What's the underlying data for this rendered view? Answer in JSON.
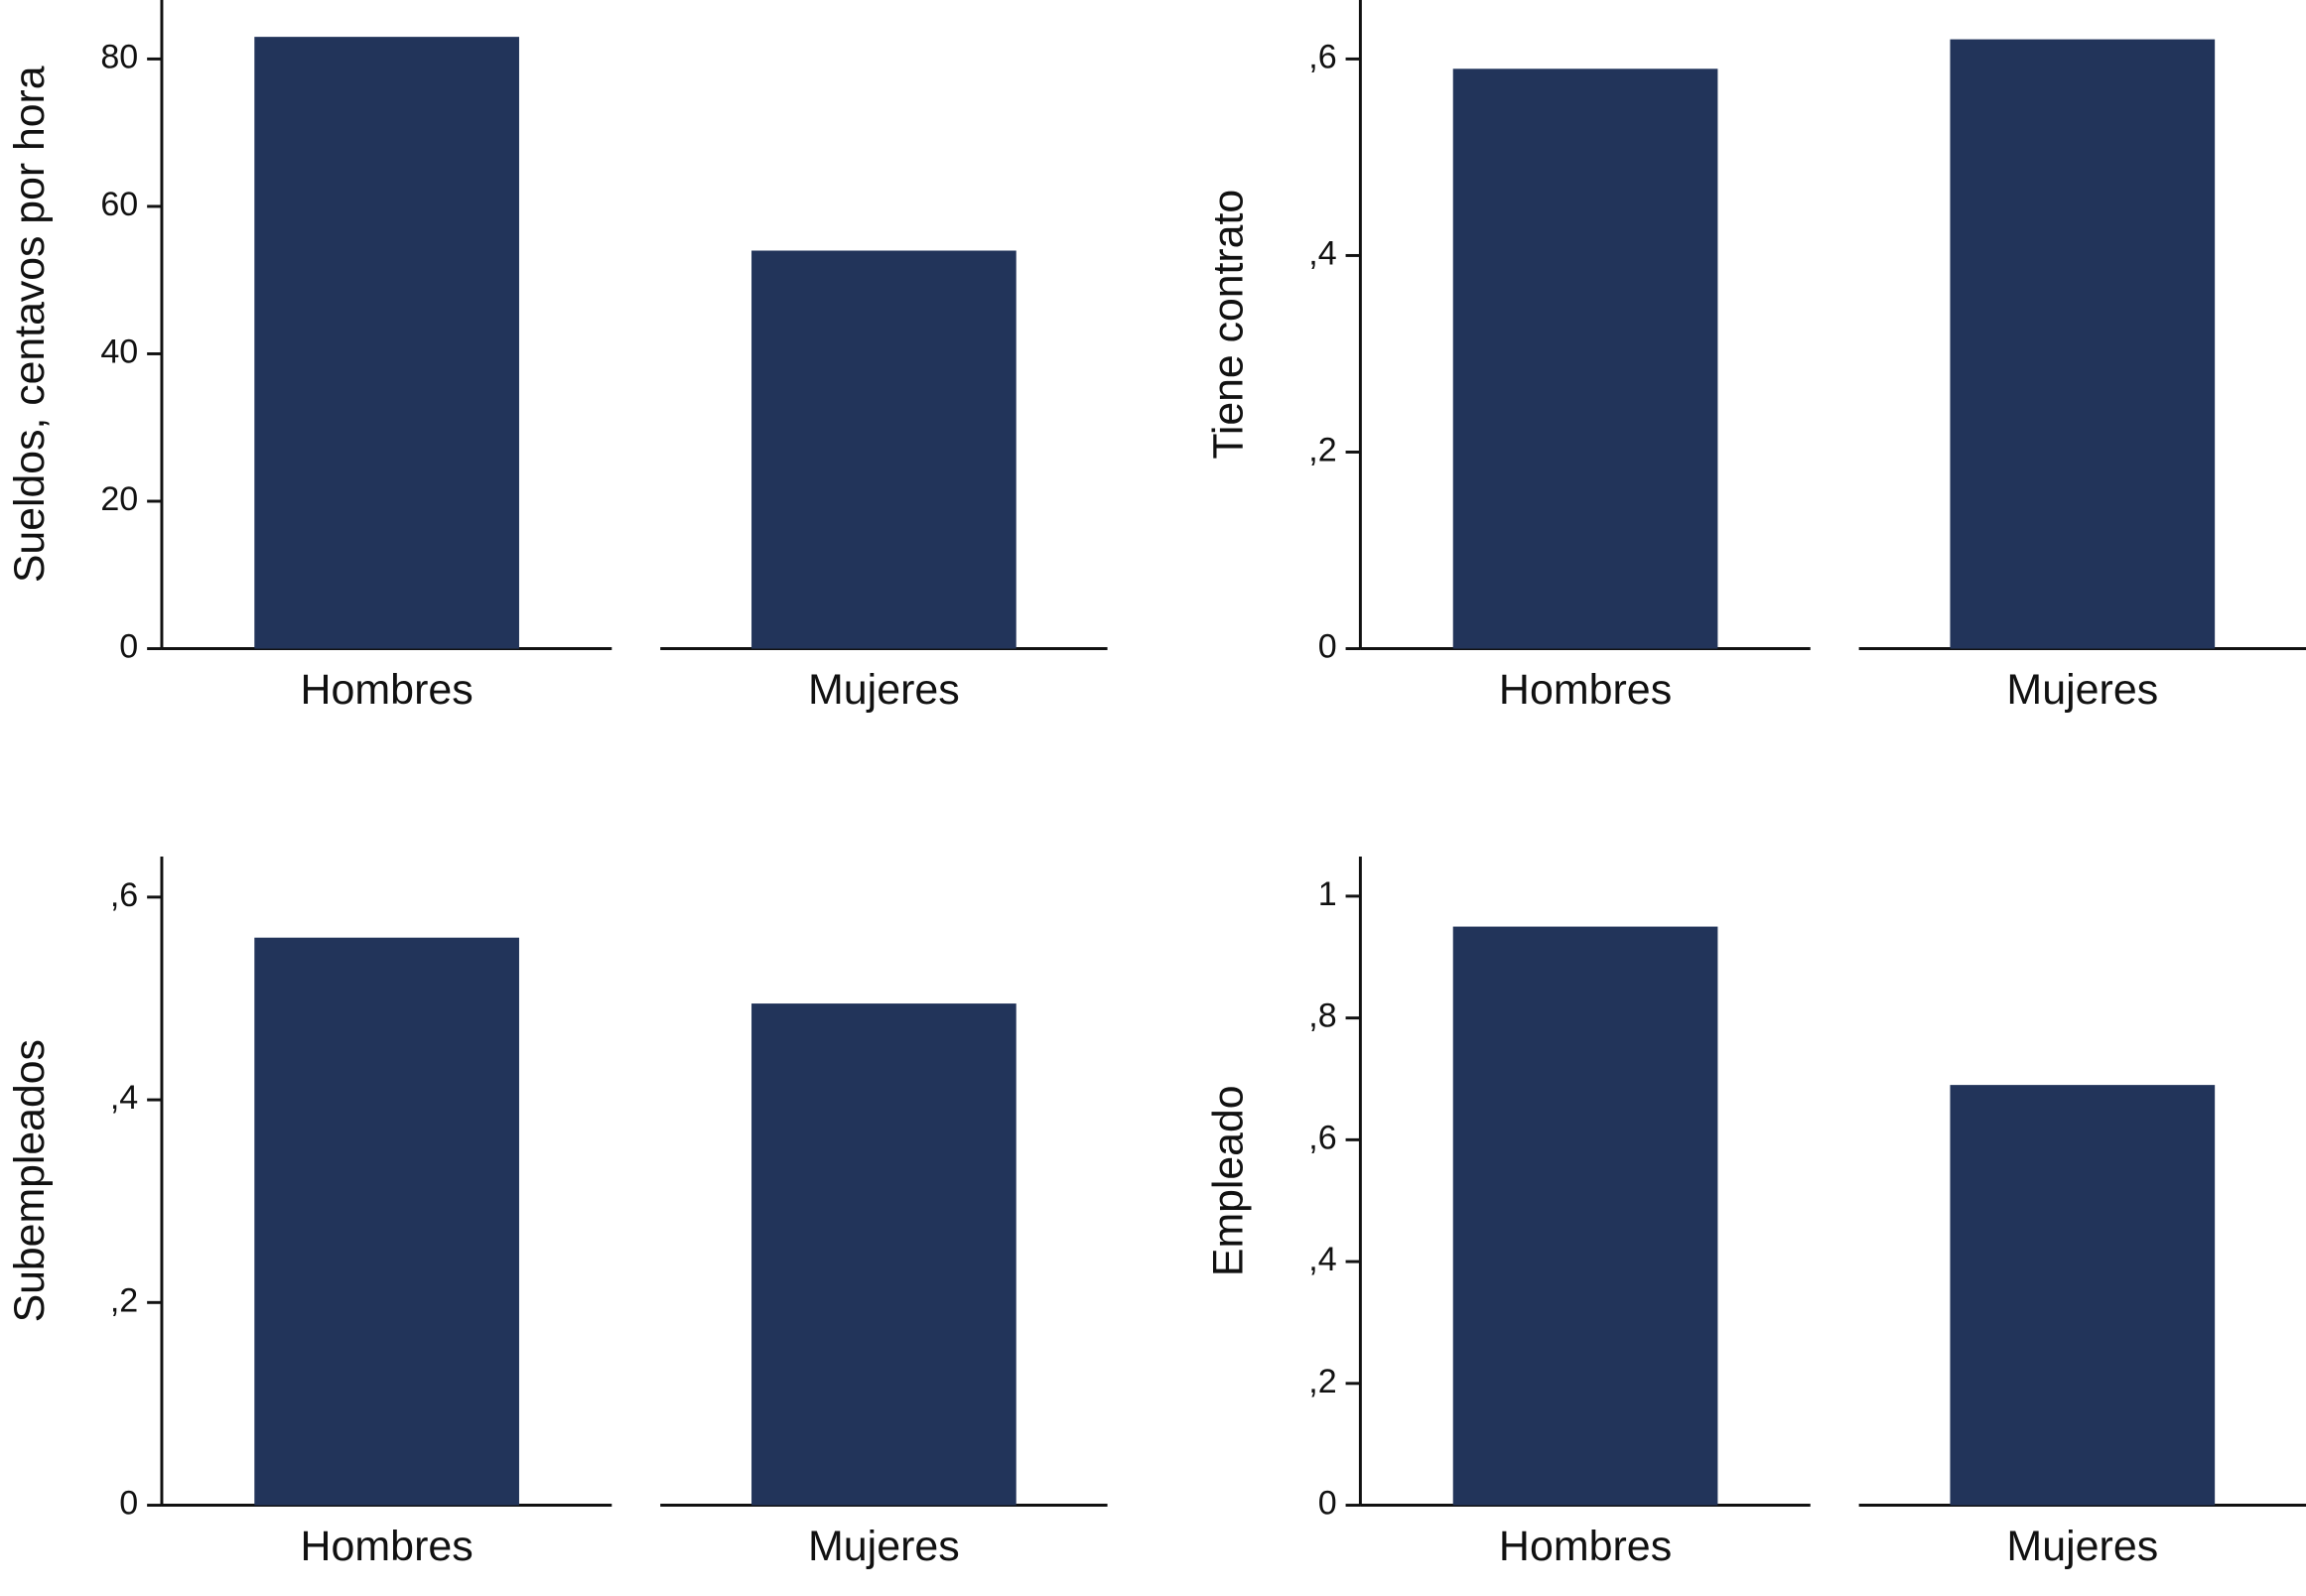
{
  "chart_data": [
    {
      "type": "bar",
      "y_label": "Sueldos, centavos por hora",
      "categories": [
        "Hombres",
        "Mujeres"
      ],
      "values": [
        83,
        54
      ],
      "color": "#22345a",
      "ylim": [
        0,
        88
      ],
      "yticks": [
        0,
        20,
        40,
        60,
        80
      ]
    },
    {
      "type": "bar",
      "y_label": "Tiene contrato",
      "categories": [
        "Hombres",
        "Mujeres"
      ],
      "values": [
        0.59,
        0.62
      ],
      "color": "#22345a",
      "ylim": [
        0,
        0.66
      ],
      "yticks": [
        0,
        {
          "value": 0.2,
          "label": ",2"
        },
        {
          "value": 0.4,
          "label": ",4"
        },
        {
          "value": 0.6,
          "label": ",6"
        }
      ]
    },
    {
      "type": "bar",
      "y_label": "Subempleados",
      "categories": [
        "Hombres",
        "Mujeres"
      ],
      "values": [
        0.56,
        0.495
      ],
      "color": "#22345a",
      "ylim": [
        0,
        0.64
      ],
      "yticks": [
        0,
        {
          "value": 0.2,
          "label": ",2"
        },
        {
          "value": 0.4,
          "label": ",4"
        },
        {
          "value": 0.6,
          "label": ",6"
        }
      ]
    },
    {
      "type": "bar",
      "y_label": "Empleado",
      "categories": [
        "Hombres",
        "Mujeres"
      ],
      "values": [
        0.95,
        0.69
      ],
      "color": "#22345a",
      "ylim": [
        0,
        1.065
      ],
      "yticks": [
        0,
        {
          "value": 0.2,
          "label": ",2"
        },
        {
          "value": 0.4,
          "label": ",4"
        },
        {
          "value": 0.6,
          "label": ",6"
        },
        {
          "value": 0.8,
          "label": ",8"
        },
        1
      ]
    }
  ]
}
